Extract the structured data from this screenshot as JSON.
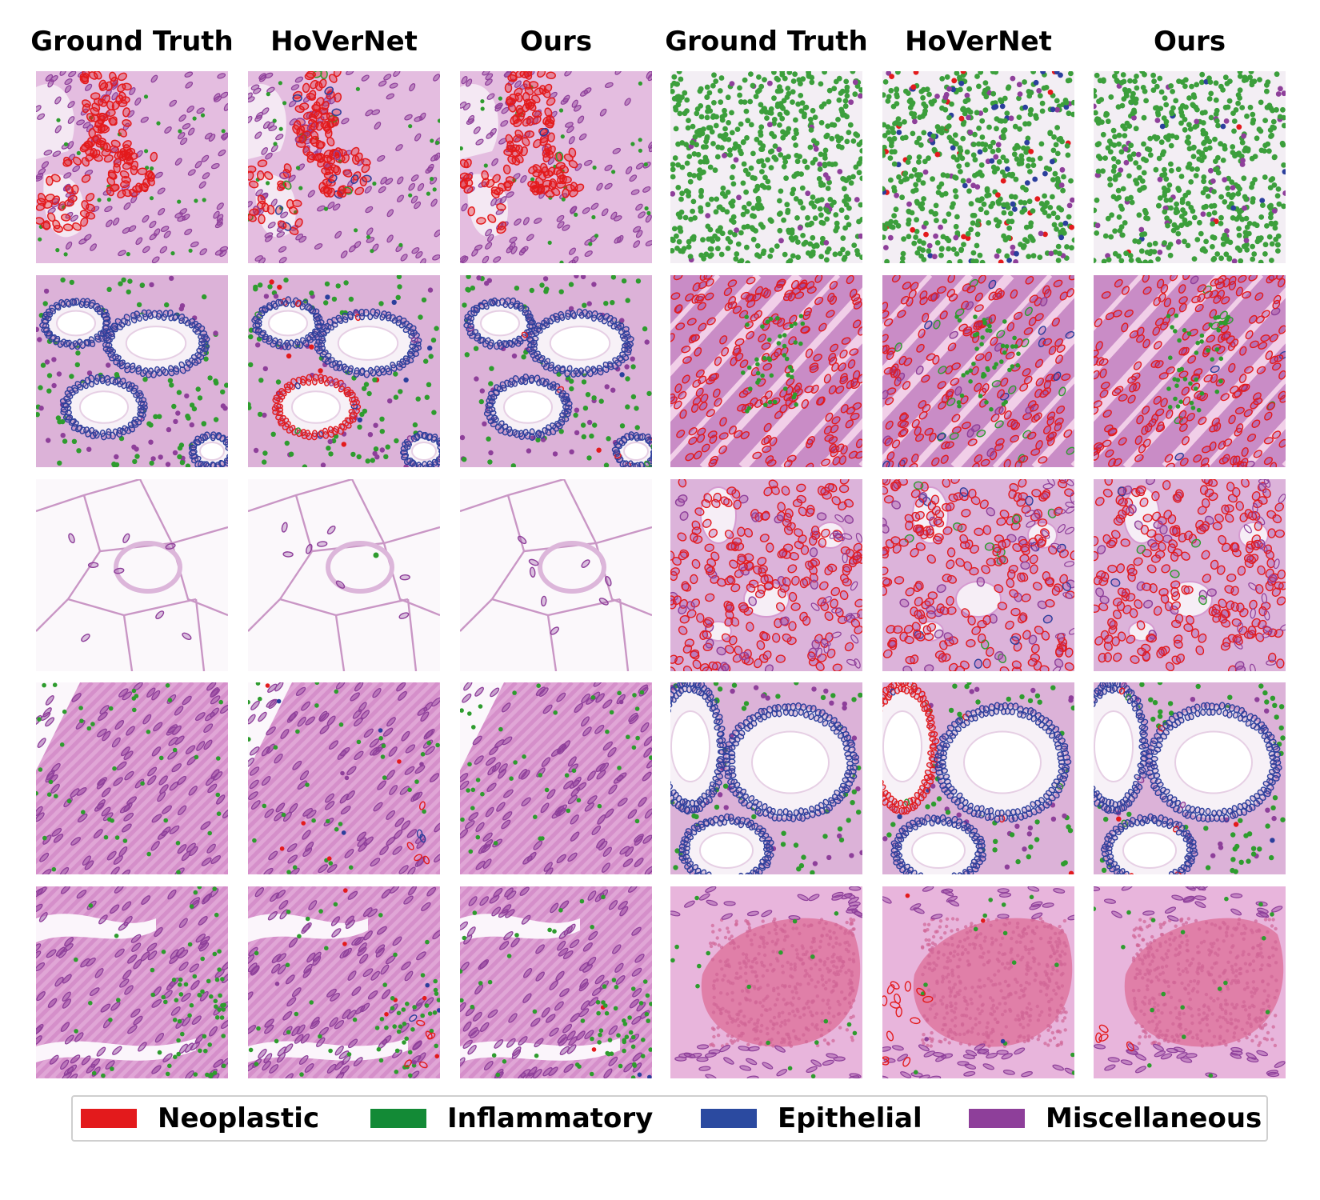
{
  "columns": [
    {
      "title": "Ground Truth"
    },
    {
      "title": "HoVerNet"
    },
    {
      "title": "Ours"
    },
    {
      "title": "Ground Truth"
    },
    {
      "title": "HoVerNet"
    },
    {
      "title": "Ours"
    }
  ],
  "legend": [
    {
      "label": "Neoplastic",
      "color": "#e31a1c"
    },
    {
      "label": "Inflammatory",
      "color": "#138a36"
    },
    {
      "label": "Epithelial",
      "color": "#2b4aa0"
    },
    {
      "label": "Miscellaneous",
      "color": "#8e3f9a"
    }
  ],
  "colors": {
    "neoplastic": "#e31a1c",
    "inflammatory": "#2e9c2e",
    "epithelial": "#2b3f9c",
    "miscellaneous": "#8e3f9a",
    "stroma": "#e3b6da",
    "stroma_dark": "#cf86c2",
    "lumen": "#f7f1f7",
    "fat": "#fbf8fb"
  },
  "grid": {
    "rows": [
      {
        "left": "tumor-gland",
        "right": "lymphocyte-sheet"
      },
      {
        "left": "colon-crypts",
        "right": "tumor-stroma"
      },
      {
        "left": "adipose",
        "right": "tumor-glands"
      },
      {
        "left": "smooth-muscle",
        "right": "colon-crypts-large"
      },
      {
        "left": "muscle-inflamed",
        "right": "blood-vessel"
      }
    ]
  }
}
